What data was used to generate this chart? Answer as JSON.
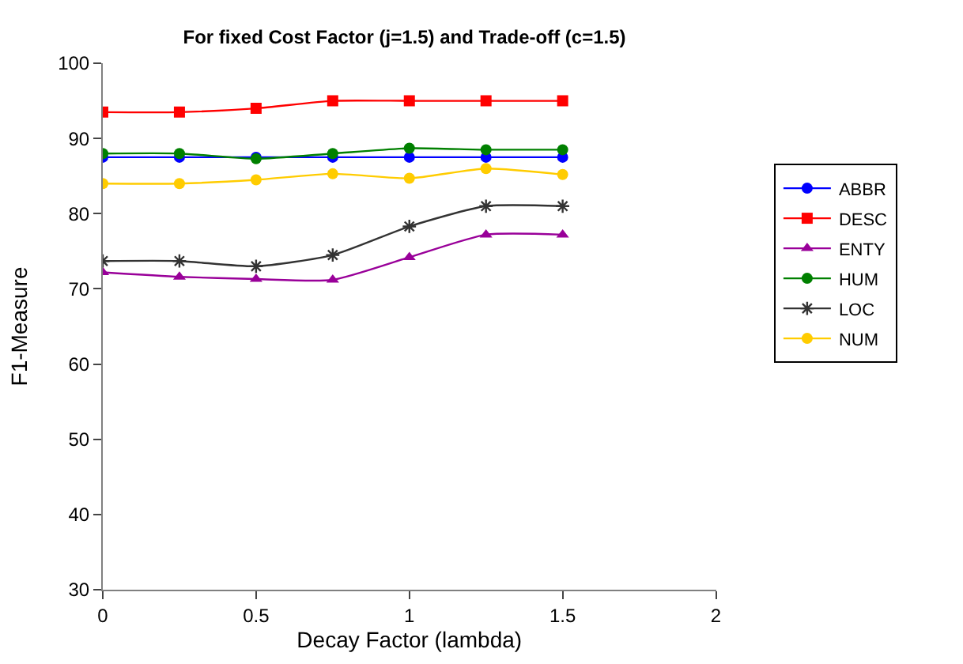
{
  "chart_data": {
    "type": "line",
    "title": "For fixed Cost Factor (j=1.5) and Trade-off (c=1.5)",
    "xlabel": "Decay Factor (lambda)",
    "ylabel": "F1-Measure",
    "x": [
      0,
      0.25,
      0.5,
      0.75,
      1,
      1.25,
      1.5
    ],
    "xlim": [
      0,
      2
    ],
    "xticks": [
      0,
      0.5,
      1,
      1.5,
      2
    ],
    "ylim": [
      30,
      100
    ],
    "yticks": [
      30,
      40,
      50,
      60,
      70,
      80,
      90,
      100
    ],
    "legend": "right",
    "line_style": "solid",
    "series": [
      {
        "name": "ABBR",
        "color": "#0000ff",
        "marker": "circle",
        "values": [
          87.5,
          87.5,
          87.5,
          87.5,
          87.5,
          87.5,
          87.5
        ]
      },
      {
        "name": "DESC",
        "color": "#ff0000",
        "marker": "square",
        "values": [
          93.5,
          93.5,
          94,
          95,
          95,
          95,
          95
        ]
      },
      {
        "name": "ENTY",
        "color": "#990099",
        "marker": "triangle",
        "values": [
          72.2,
          71.6,
          71.3,
          71.2,
          74.2,
          77.2,
          77.2
        ]
      },
      {
        "name": "HUM",
        "color": "#008000",
        "marker": "circle",
        "values": [
          88,
          88,
          87.3,
          88,
          88.7,
          88.5,
          88.5
        ]
      },
      {
        "name": "LOC",
        "color": "#333333",
        "marker": "cross",
        "values": [
          73.7,
          73.7,
          73,
          74.5,
          78.3,
          81,
          81
        ]
      },
      {
        "name": "NUM",
        "color": "#ffcc00",
        "marker": "circle",
        "values": [
          84,
          84,
          84.5,
          85.3,
          84.7,
          86,
          85.2
        ]
      }
    ]
  }
}
